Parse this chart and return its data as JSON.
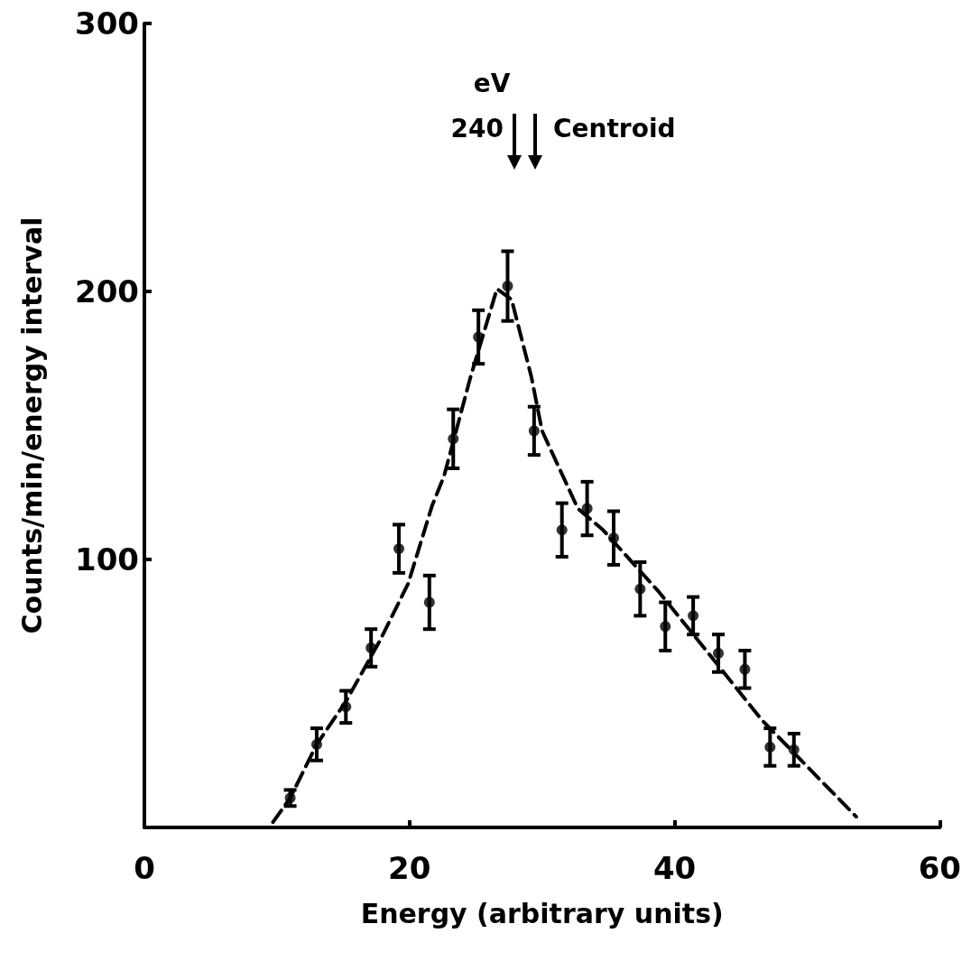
{
  "chart_data": {
    "type": "scatter",
    "xlabel": "Energy (arbitrary units)",
    "ylabel": "Counts/min/energy interval",
    "xlim": [
      0,
      60
    ],
    "xticks": [
      0,
      20,
      40,
      60
    ],
    "ylim": [
      0,
      300
    ],
    "yticks": [
      100,
      200,
      300
    ],
    "grid": false,
    "marker": "circle",
    "annotations": [
      "eV",
      "240",
      "Centroid"
    ],
    "series": [
      {
        "color": "#000000",
        "x": [
          11,
          13,
          15.2,
          17.1,
          19.2,
          21.5,
          23.3,
          25.2,
          27.4,
          29.4,
          31.5,
          33.4,
          35.4,
          37.4,
          39.3,
          41.4,
          43.3,
          45.3,
          47.2,
          49
        ],
        "values": [
          11,
          31,
          45,
          67,
          104,
          84,
          145,
          183,
          202,
          148,
          111,
          119,
          108,
          89,
          75,
          79,
          65,
          59,
          30,
          29
        ],
        "errors": [
          3,
          6,
          6,
          7,
          9,
          10,
          11,
          10,
          13,
          9,
          10,
          10,
          10,
          10,
          9,
          7,
          7,
          7,
          7,
          6
        ]
      },
      {
        "type": "line",
        "color": "#000000",
        "marker": "none",
        "line_style": "dashed",
        "x": [
          9.7,
          11,
          13,
          15.2,
          17.8,
          19.9,
          21.7,
          22.6,
          24.6,
          26.6,
          27.7,
          29.2,
          30,
          32.7,
          34.6,
          38.8,
          43.2,
          46.6,
          53.7
        ],
        "values": [
          2,
          11,
          31,
          47,
          70,
          91,
          120,
          131,
          168,
          201,
          197,
          168,
          148,
          119,
          111,
          88,
          61,
          40,
          4
        ]
      }
    ]
  }
}
